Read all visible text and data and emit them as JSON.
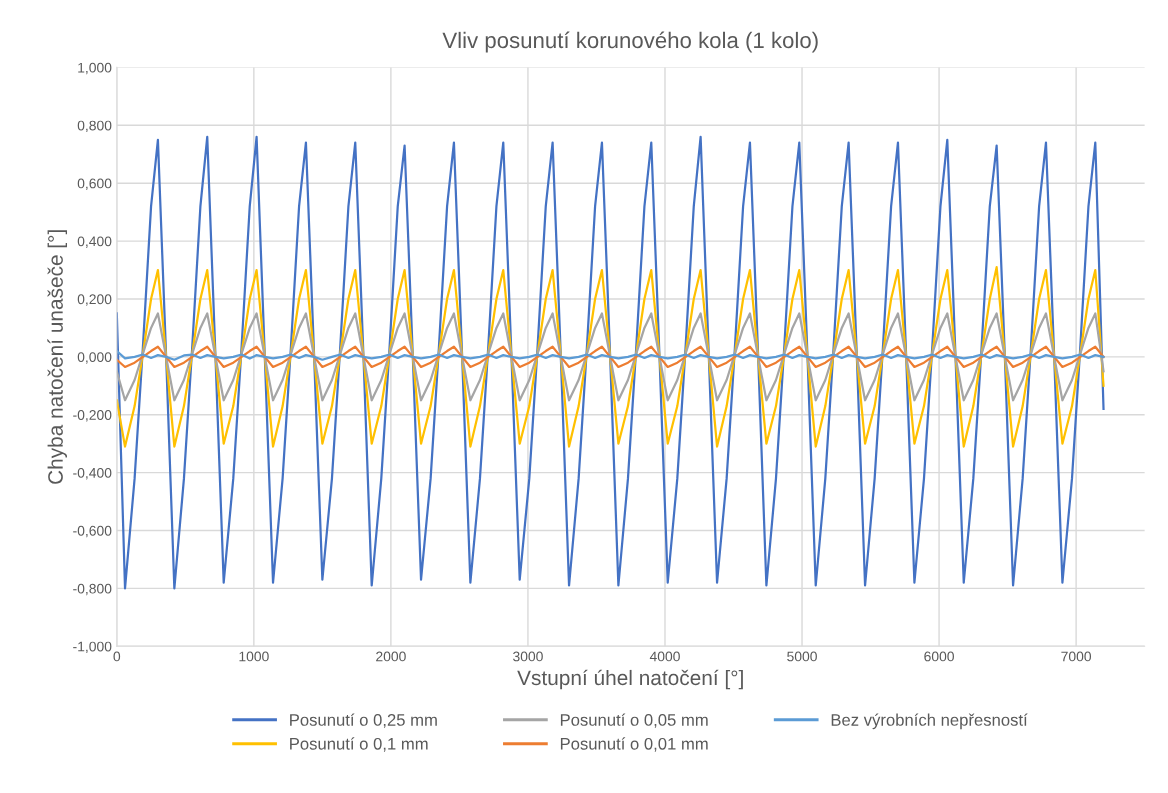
{
  "chart_data": {
    "type": "line",
    "title": "Vliv posunutí korunového kola (1 kolo)",
    "xlabel": "Vstupní úhel natočení [°]",
    "ylabel": "Chyba natočení unašeče [°]",
    "x": [
      0,
      60,
      130,
      190,
      250,
      300,
      360,
      420,
      490,
      550,
      610,
      660,
      720,
      780,
      850,
      910,
      970,
      1020,
      1080,
      1140,
      1210,
      1270,
      1330,
      1380,
      1440,
      1500,
      1570,
      1630,
      1690,
      1740,
      1800,
      1860,
      1930,
      1990,
      2050,
      2100,
      2160,
      2220,
      2290,
      2350,
      2410,
      2460,
      2520,
      2580,
      2650,
      2710,
      2770,
      2820,
      2880,
      2940,
      3010,
      3070,
      3130,
      3180,
      3240,
      3300,
      3370,
      3430,
      3490,
      3540,
      3600,
      3660,
      3730,
      3790,
      3850,
      3900,
      3960,
      4020,
      4090,
      4150,
      4210,
      4260,
      4320,
      4380,
      4450,
      4510,
      4570,
      4620,
      4680,
      4740,
      4810,
      4870,
      4930,
      4980,
      5040,
      5100,
      5170,
      5230,
      5290,
      5340,
      5400,
      5460,
      5530,
      5590,
      5650,
      5700,
      5760,
      5820,
      5890,
      5950,
      6010,
      6060,
      6120,
      6180,
      6250,
      6310,
      6370,
      6420,
      6480,
      6540,
      6610,
      6670,
      6730,
      6780,
      6840,
      6900,
      6970,
      7030,
      7090,
      7140,
      7200
    ],
    "series": [
      {
        "name": "Posunutí o 0,25 mm",
        "color": "#4472c4",
        "values": [
          0.15,
          -0.8,
          -0.42,
          0.03,
          0.52,
          0.75,
          0.0,
          -0.8,
          -0.42,
          0.03,
          0.52,
          0.76,
          0.0,
          -0.78,
          -0.42,
          0.03,
          0.52,
          0.76,
          0.0,
          -0.78,
          -0.42,
          0.03,
          0.52,
          0.74,
          0.0,
          -0.77,
          -0.42,
          0.03,
          0.52,
          0.74,
          0.0,
          -0.79,
          -0.42,
          0.03,
          0.52,
          0.73,
          0.0,
          -0.77,
          -0.42,
          0.03,
          0.52,
          0.74,
          0.0,
          -0.78,
          -0.42,
          0.03,
          0.52,
          0.74,
          0.0,
          -0.77,
          -0.42,
          0.03,
          0.52,
          0.74,
          0.0,
          -0.79,
          -0.42,
          0.03,
          0.52,
          0.74,
          0.0,
          -0.79,
          -0.42,
          0.03,
          0.52,
          0.74,
          0.0,
          -0.78,
          -0.42,
          0.03,
          0.52,
          0.76,
          0.0,
          -0.78,
          -0.42,
          0.03,
          0.52,
          0.74,
          0.0,
          -0.79,
          -0.42,
          0.03,
          0.52,
          0.74,
          0.0,
          -0.79,
          -0.42,
          0.03,
          0.52,
          0.74,
          0.0,
          -0.79,
          -0.42,
          0.03,
          0.52,
          0.74,
          0.0,
          -0.78,
          -0.42,
          0.03,
          0.52,
          0.75,
          0.0,
          -0.78,
          -0.42,
          0.03,
          0.52,
          0.73,
          0.0,
          -0.79,
          -0.42,
          0.03,
          0.52,
          0.74,
          0.0,
          -0.78,
          -0.42,
          0.03,
          0.52,
          0.74,
          -0.18
        ]
      },
      {
        "name": "Posunutí o 0,1 mm",
        "color": "#ffc000",
        "values": [
          -0.15,
          -0.31,
          -0.17,
          0.01,
          0.2,
          0.3,
          0.0,
          -0.31,
          -0.17,
          0.01,
          0.2,
          0.3,
          0.0,
          -0.3,
          -0.17,
          0.01,
          0.2,
          0.3,
          0.0,
          -0.31,
          -0.17,
          0.01,
          0.2,
          0.3,
          0.0,
          -0.3,
          -0.17,
          0.01,
          0.2,
          0.3,
          0.0,
          -0.3,
          -0.17,
          0.01,
          0.2,
          0.3,
          0.0,
          -0.3,
          -0.17,
          0.01,
          0.2,
          0.3,
          0.0,
          -0.31,
          -0.17,
          0.01,
          0.2,
          0.3,
          0.0,
          -0.3,
          -0.17,
          0.01,
          0.2,
          0.3,
          0.0,
          -0.31,
          -0.17,
          0.01,
          0.2,
          0.3,
          0.0,
          -0.3,
          -0.17,
          0.01,
          0.2,
          0.3,
          0.0,
          -0.3,
          -0.17,
          0.01,
          0.2,
          0.3,
          0.0,
          -0.31,
          -0.17,
          0.01,
          0.2,
          0.3,
          0.0,
          -0.3,
          -0.17,
          0.01,
          0.2,
          0.3,
          0.0,
          -0.31,
          -0.17,
          0.01,
          0.2,
          0.3,
          0.0,
          -0.3,
          -0.17,
          0.01,
          0.2,
          0.3,
          0.0,
          -0.3,
          -0.17,
          0.01,
          0.2,
          0.3,
          0.0,
          -0.31,
          -0.17,
          0.01,
          0.2,
          0.31,
          0.0,
          -0.31,
          -0.17,
          0.01,
          0.2,
          0.3,
          0.0,
          -0.3,
          -0.17,
          0.01,
          0.2,
          0.3,
          -0.1
        ]
      },
      {
        "name": "Posunutí o 0,05 mm",
        "color": "#a5a5a5",
        "values": [
          -0.05,
          -0.15,
          -0.08,
          0.01,
          0.1,
          0.15,
          0.0,
          -0.15,
          -0.08,
          0.01,
          0.1,
          0.15,
          0.0,
          -0.15,
          -0.08,
          0.01,
          0.1,
          0.15,
          0.0,
          -0.15,
          -0.08,
          0.01,
          0.1,
          0.15,
          0.0,
          -0.15,
          -0.08,
          0.01,
          0.1,
          0.15,
          0.0,
          -0.15,
          -0.08,
          0.01,
          0.1,
          0.15,
          0.0,
          -0.15,
          -0.08,
          0.01,
          0.1,
          0.15,
          0.0,
          -0.15,
          -0.08,
          0.01,
          0.1,
          0.15,
          0.0,
          -0.15,
          -0.08,
          0.01,
          0.1,
          0.15,
          0.0,
          -0.15,
          -0.08,
          0.01,
          0.1,
          0.15,
          0.0,
          -0.15,
          -0.08,
          0.01,
          0.1,
          0.15,
          0.0,
          -0.15,
          -0.08,
          0.01,
          0.1,
          0.15,
          0.0,
          -0.15,
          -0.08,
          0.01,
          0.1,
          0.15,
          0.0,
          -0.15,
          -0.08,
          0.01,
          0.1,
          0.15,
          0.0,
          -0.15,
          -0.08,
          0.01,
          0.1,
          0.15,
          0.0,
          -0.15,
          -0.08,
          0.01,
          0.1,
          0.15,
          0.0,
          -0.15,
          -0.08,
          0.01,
          0.1,
          0.15,
          0.0,
          -0.15,
          -0.08,
          0.01,
          0.1,
          0.15,
          0.0,
          -0.15,
          -0.08,
          0.01,
          0.1,
          0.15,
          0.0,
          -0.15,
          -0.08,
          0.01,
          0.1,
          0.15,
          -0.05
        ]
      },
      {
        "name": "Posunutí o 0,01 mm",
        "color": "#ed7d31",
        "values": [
          -0.01,
          -0.035,
          -0.02,
          0.0,
          0.02,
          0.035,
          0.0,
          -0.035,
          -0.02,
          0.0,
          0.02,
          0.035,
          0.0,
          -0.035,
          -0.02,
          0.0,
          0.02,
          0.035,
          0.0,
          -0.035,
          -0.02,
          0.0,
          0.02,
          0.035,
          0.0,
          -0.035,
          -0.02,
          0.0,
          0.02,
          0.035,
          0.0,
          -0.035,
          -0.02,
          0.0,
          0.02,
          0.035,
          0.0,
          -0.035,
          -0.02,
          0.0,
          0.02,
          0.035,
          0.0,
          -0.035,
          -0.02,
          0.0,
          0.02,
          0.035,
          0.0,
          -0.035,
          -0.02,
          0.0,
          0.02,
          0.035,
          0.0,
          -0.035,
          -0.02,
          0.0,
          0.02,
          0.035,
          0.0,
          -0.035,
          -0.02,
          0.0,
          0.02,
          0.035,
          0.0,
          -0.035,
          -0.02,
          0.0,
          0.02,
          0.035,
          0.0,
          -0.035,
          -0.02,
          0.0,
          0.02,
          0.035,
          0.0,
          -0.035,
          -0.02,
          0.0,
          0.02,
          0.035,
          0.0,
          -0.035,
          -0.02,
          0.0,
          0.02,
          0.035,
          0.0,
          -0.035,
          -0.02,
          0.0,
          0.02,
          0.035,
          0.0,
          -0.035,
          -0.02,
          0.0,
          0.02,
          0.035,
          0.0,
          -0.035,
          -0.02,
          0.0,
          0.02,
          0.035,
          0.0,
          -0.035,
          -0.02,
          0.0,
          0.02,
          0.035,
          0.0,
          -0.035,
          -0.02,
          0.0,
          0.02,
          0.035,
          0.0
        ]
      },
      {
        "name": "Bez výrobních nepřesností",
        "color": "#5b9bd5",
        "values": [
          0.02,
          -0.005,
          0.0,
          0.008,
          -0.004,
          0.006,
          0.0,
          -0.01,
          0.005,
          0.008,
          -0.004,
          0.006,
          0.0,
          -0.005,
          0.0,
          0.008,
          -0.006,
          0.006,
          0.0,
          -0.005,
          0.0,
          0.008,
          -0.004,
          0.006,
          0.0,
          -0.01,
          0.0,
          0.008,
          -0.004,
          0.006,
          0.0,
          -0.005,
          0.0,
          0.008,
          -0.004,
          0.006,
          0.0,
          -0.005,
          0.0,
          0.008,
          -0.004,
          0.006,
          0.0,
          -0.005,
          0.0,
          0.008,
          -0.004,
          0.006,
          0.0,
          -0.005,
          0.0,
          0.008,
          -0.004,
          0.006,
          0.0,
          -0.005,
          0.0,
          0.008,
          -0.004,
          0.006,
          0.0,
          -0.005,
          0.0,
          0.008,
          -0.004,
          0.006,
          0.0,
          -0.005,
          0.0,
          0.008,
          -0.004,
          0.006,
          0.0,
          -0.005,
          0.0,
          0.008,
          -0.004,
          0.006,
          0.0,
          -0.005,
          0.0,
          0.008,
          -0.004,
          0.006,
          0.0,
          -0.005,
          0.0,
          0.008,
          -0.004,
          0.006,
          0.0,
          -0.005,
          0.0,
          0.008,
          -0.004,
          0.006,
          0.0,
          -0.005,
          0.0,
          0.008,
          -0.004,
          0.006,
          0.0,
          -0.005,
          0.0,
          0.008,
          -0.004,
          0.006,
          0.0,
          -0.005,
          0.0,
          0.008,
          -0.004,
          0.006,
          0.0,
          -0.005,
          0.0,
          0.008,
          -0.004,
          0.006,
          0.0
        ]
      }
    ],
    "xlim": [
      0,
      7500
    ],
    "xticks": [
      0,
      1000,
      2000,
      3000,
      4000,
      5000,
      6000,
      7000
    ],
    "ylim": [
      -1,
      1
    ],
    "yticks": [
      {
        "value": -1,
        "label": "-1,000"
      },
      {
        "value": -0.8,
        "label": "-0,800"
      },
      {
        "value": -0.6,
        "label": "-0,600"
      },
      {
        "value": -0.4,
        "label": "-0,400"
      },
      {
        "value": -0.2,
        "label": "-0,200"
      },
      {
        "value": 0,
        "label": "0,000"
      },
      {
        "value": 0.2,
        "label": "0,200"
      },
      {
        "value": 0.4,
        "label": "0,400"
      },
      {
        "value": 0.6,
        "label": "0,600"
      },
      {
        "value": 0.8,
        "label": "0,800"
      },
      {
        "value": 1,
        "label": "1,000"
      }
    ],
    "grid": true,
    "legend": "bottom",
    "marker": "none",
    "line_style": "solid"
  }
}
